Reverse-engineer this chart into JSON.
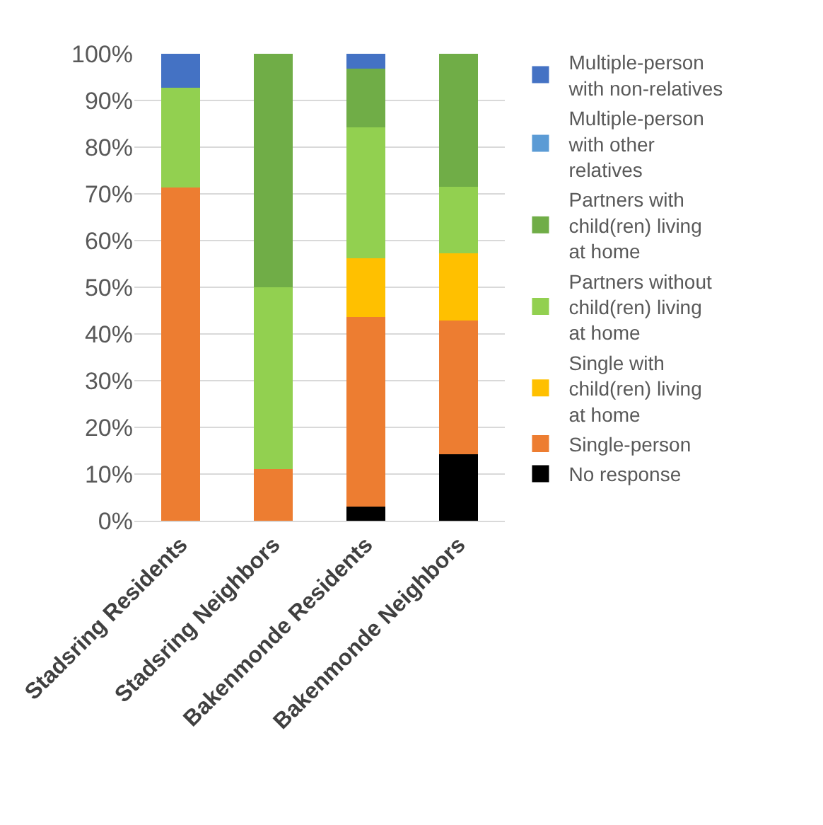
{
  "chart_data": {
    "type": "bar",
    "stacked": true,
    "categories": [
      "Stadsring Residents",
      "Stadsring Neighbors",
      "Bakenmonde Residents",
      "Bakenmonde Neighbors"
    ],
    "series": [
      {
        "name": "No response",
        "color": "#000000",
        "values": [
          null,
          null,
          3,
          14.3
        ]
      },
      {
        "name": "Single-person",
        "color": "#ed7d31",
        "values": [
          71.4,
          11,
          40.6,
          28.6
        ]
      },
      {
        "name": "Single with child(ren) living at home",
        "color": "#ffc000",
        "values": [
          null,
          null,
          12.6,
          14.3
        ]
      },
      {
        "name": "Partners without child(ren) living at home",
        "color": "#92d050",
        "values": [
          21.4,
          39,
          28,
          14.3
        ]
      },
      {
        "name": "Partners with child(ren) living at home",
        "color": "#70ad47",
        "values": [
          null,
          50,
          12.6,
          28.5
        ]
      },
      {
        "name": "Multiple-person with other relatives",
        "color": "#5b9bd5",
        "values": [
          null,
          null,
          null,
          null
        ]
      },
      {
        "name": "Multiple-person with non-relatives",
        "color": "#4472c4",
        "values": [
          7.2,
          null,
          3.2,
          null
        ]
      }
    ],
    "ylim": [
      0,
      100
    ],
    "yticks": [
      {
        "value": 0,
        "label": "0%"
      },
      {
        "value": 10,
        "label": "10%"
      },
      {
        "value": 20,
        "label": "20%"
      },
      {
        "value": 30,
        "label": "30%"
      },
      {
        "value": 40,
        "label": "40%"
      },
      {
        "value": 50,
        "label": "50%"
      },
      {
        "value": 60,
        "label": "60%"
      },
      {
        "value": 70,
        "label": "70%"
      },
      {
        "value": 80,
        "label": "80%"
      },
      {
        "value": 90,
        "label": "90%"
      },
      {
        "value": 100,
        "label": "100%"
      }
    ],
    "grid": "y",
    "legend": "right"
  }
}
